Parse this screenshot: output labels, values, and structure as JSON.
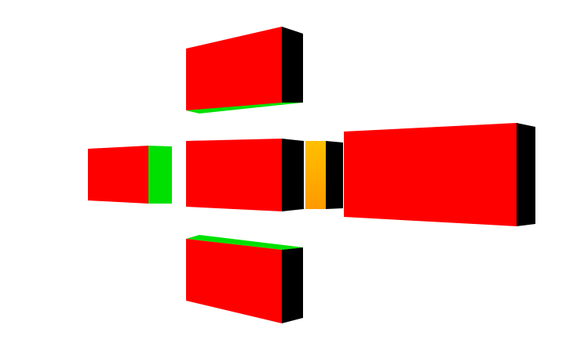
{
  "scene": {
    "background": "#ffffff",
    "colors": {
      "red": "#ff0000",
      "green": "#00e000",
      "black": "#000000",
      "orange": "#ffc000",
      "orange_shade": "#ff9900"
    },
    "blocks": [
      {
        "name": "top-block",
        "faces": [
          "red",
          "black",
          "green"
        ]
      },
      {
        "name": "left-block",
        "faces": [
          "red",
          "green"
        ]
      },
      {
        "name": "center-block",
        "faces": [
          "red",
          "black"
        ]
      },
      {
        "name": "connector-block",
        "faces": [
          "orange",
          "black"
        ]
      },
      {
        "name": "right-block",
        "faces": [
          "red",
          "black"
        ]
      },
      {
        "name": "bottom-block",
        "faces": [
          "green",
          "red",
          "black"
        ]
      }
    ]
  }
}
